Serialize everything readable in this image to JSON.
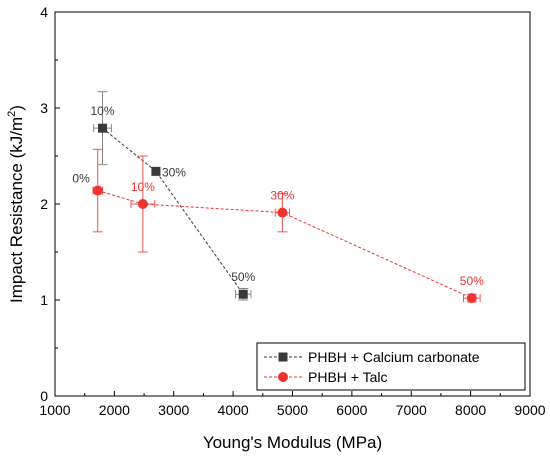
{
  "chart_data": {
    "type": "scatter",
    "title": "",
    "xlabel": "Young's Modulus (MPa)",
    "ylabel": "Impact Resistance (kJ/m²)",
    "ylabel_main": "Impact Resistance (kJ/m",
    "ylabel_sup": "2",
    "ylabel_end": ")",
    "xlim": [
      1000,
      9000
    ],
    "ylim": [
      0,
      4
    ],
    "xticks": [
      1000,
      2000,
      3000,
      4000,
      5000,
      6000,
      7000,
      8000,
      9000
    ],
    "yticks": [
      0,
      1,
      2,
      3,
      4
    ],
    "grid": false,
    "legend_position": "bottom-right",
    "series": [
      {
        "name": "PHBH + Calcium carbonate",
        "color": "#3a3a3a",
        "marker": "square",
        "points": [
          {
            "x": 1800,
            "y": 2.79,
            "xerr": 150,
            "yerr": 0.38,
            "label": "10%"
          },
          {
            "x": 2700,
            "y": 2.34,
            "xerr": 0,
            "yerr": 0,
            "label": "30%"
          },
          {
            "x": 4170,
            "y": 1.06,
            "xerr": 130,
            "yerr": 0.06,
            "label": "50%"
          }
        ]
      },
      {
        "name": "PHBH + Talc",
        "color": "#ee3333",
        "marker": "circle",
        "points": [
          {
            "x": 1720,
            "y": 2.14,
            "xerr": 80,
            "yerr": 0.43,
            "label": "0%",
            "label_color": "#3a3a3a"
          },
          {
            "x": 2480,
            "y": 2.0,
            "xerr": 200,
            "yerr": 0.5,
            "label": "10%"
          },
          {
            "x": 4830,
            "y": 1.91,
            "xerr": 120,
            "yerr": 0.2,
            "label": "30%"
          },
          {
            "x": 8020,
            "y": 1.02,
            "xerr": 140,
            "yerr": 0.04,
            "label": "50%"
          }
        ]
      }
    ]
  }
}
